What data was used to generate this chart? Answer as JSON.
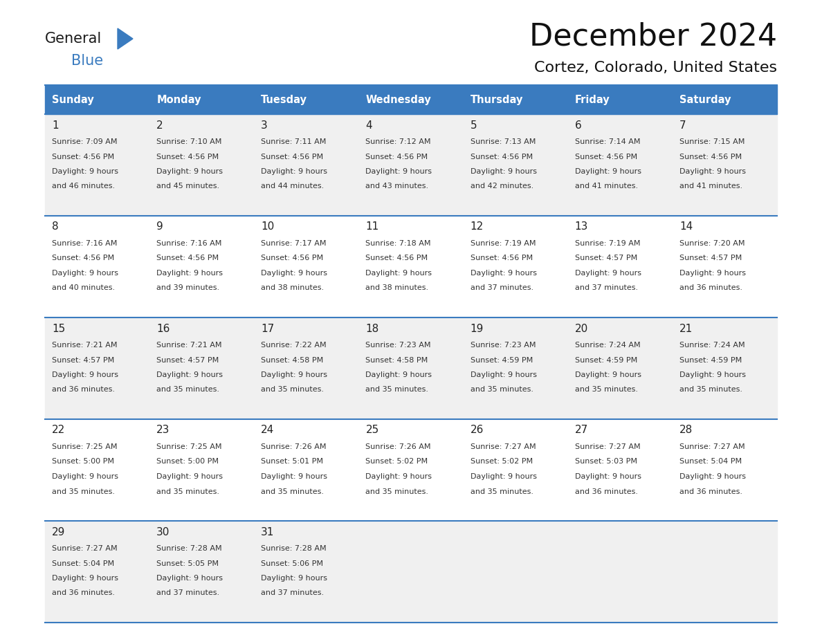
{
  "title": "December 2024",
  "subtitle": "Cortez, Colorado, United States",
  "days_of_week": [
    "Sunday",
    "Monday",
    "Tuesday",
    "Wednesday",
    "Thursday",
    "Friday",
    "Saturday"
  ],
  "header_bg": "#3a7bbf",
  "header_text": "#ffffff",
  "row_bg_light": "#f0f0f0",
  "row_bg_white": "#ffffff",
  "separator_color": "#3a7bbf",
  "day_num_color": "#222222",
  "cell_text_color": "#333333",
  "calendar_data": [
    [
      {
        "day": 1,
        "sunrise": "7:09 AM",
        "sunset": "4:56 PM",
        "daylight_hrs": 9,
        "daylight_min": 46
      },
      {
        "day": 2,
        "sunrise": "7:10 AM",
        "sunset": "4:56 PM",
        "daylight_hrs": 9,
        "daylight_min": 45
      },
      {
        "day": 3,
        "sunrise": "7:11 AM",
        "sunset": "4:56 PM",
        "daylight_hrs": 9,
        "daylight_min": 44
      },
      {
        "day": 4,
        "sunrise": "7:12 AM",
        "sunset": "4:56 PM",
        "daylight_hrs": 9,
        "daylight_min": 43
      },
      {
        "day": 5,
        "sunrise": "7:13 AM",
        "sunset": "4:56 PM",
        "daylight_hrs": 9,
        "daylight_min": 42
      },
      {
        "day": 6,
        "sunrise": "7:14 AM",
        "sunset": "4:56 PM",
        "daylight_hrs": 9,
        "daylight_min": 41
      },
      {
        "day": 7,
        "sunrise": "7:15 AM",
        "sunset": "4:56 PM",
        "daylight_hrs": 9,
        "daylight_min": 41
      }
    ],
    [
      {
        "day": 8,
        "sunrise": "7:16 AM",
        "sunset": "4:56 PM",
        "daylight_hrs": 9,
        "daylight_min": 40
      },
      {
        "day": 9,
        "sunrise": "7:16 AM",
        "sunset": "4:56 PM",
        "daylight_hrs": 9,
        "daylight_min": 39
      },
      {
        "day": 10,
        "sunrise": "7:17 AM",
        "sunset": "4:56 PM",
        "daylight_hrs": 9,
        "daylight_min": 38
      },
      {
        "day": 11,
        "sunrise": "7:18 AM",
        "sunset": "4:56 PM",
        "daylight_hrs": 9,
        "daylight_min": 38
      },
      {
        "day": 12,
        "sunrise": "7:19 AM",
        "sunset": "4:56 PM",
        "daylight_hrs": 9,
        "daylight_min": 37
      },
      {
        "day": 13,
        "sunrise": "7:19 AM",
        "sunset": "4:57 PM",
        "daylight_hrs": 9,
        "daylight_min": 37
      },
      {
        "day": 14,
        "sunrise": "7:20 AM",
        "sunset": "4:57 PM",
        "daylight_hrs": 9,
        "daylight_min": 36
      }
    ],
    [
      {
        "day": 15,
        "sunrise": "7:21 AM",
        "sunset": "4:57 PM",
        "daylight_hrs": 9,
        "daylight_min": 36
      },
      {
        "day": 16,
        "sunrise": "7:21 AM",
        "sunset": "4:57 PM",
        "daylight_hrs": 9,
        "daylight_min": 35
      },
      {
        "day": 17,
        "sunrise": "7:22 AM",
        "sunset": "4:58 PM",
        "daylight_hrs": 9,
        "daylight_min": 35
      },
      {
        "day": 18,
        "sunrise": "7:23 AM",
        "sunset": "4:58 PM",
        "daylight_hrs": 9,
        "daylight_min": 35
      },
      {
        "day": 19,
        "sunrise": "7:23 AM",
        "sunset": "4:59 PM",
        "daylight_hrs": 9,
        "daylight_min": 35
      },
      {
        "day": 20,
        "sunrise": "7:24 AM",
        "sunset": "4:59 PM",
        "daylight_hrs": 9,
        "daylight_min": 35
      },
      {
        "day": 21,
        "sunrise": "7:24 AM",
        "sunset": "4:59 PM",
        "daylight_hrs": 9,
        "daylight_min": 35
      }
    ],
    [
      {
        "day": 22,
        "sunrise": "7:25 AM",
        "sunset": "5:00 PM",
        "daylight_hrs": 9,
        "daylight_min": 35
      },
      {
        "day": 23,
        "sunrise": "7:25 AM",
        "sunset": "5:00 PM",
        "daylight_hrs": 9,
        "daylight_min": 35
      },
      {
        "day": 24,
        "sunrise": "7:26 AM",
        "sunset": "5:01 PM",
        "daylight_hrs": 9,
        "daylight_min": 35
      },
      {
        "day": 25,
        "sunrise": "7:26 AM",
        "sunset": "5:02 PM",
        "daylight_hrs": 9,
        "daylight_min": 35
      },
      {
        "day": 26,
        "sunrise": "7:27 AM",
        "sunset": "5:02 PM",
        "daylight_hrs": 9,
        "daylight_min": 35
      },
      {
        "day": 27,
        "sunrise": "7:27 AM",
        "sunset": "5:03 PM",
        "daylight_hrs": 9,
        "daylight_min": 36
      },
      {
        "day": 28,
        "sunrise": "7:27 AM",
        "sunset": "5:04 PM",
        "daylight_hrs": 9,
        "daylight_min": 36
      }
    ],
    [
      {
        "day": 29,
        "sunrise": "7:27 AM",
        "sunset": "5:04 PM",
        "daylight_hrs": 9,
        "daylight_min": 36
      },
      {
        "day": 30,
        "sunrise": "7:28 AM",
        "sunset": "5:05 PM",
        "daylight_hrs": 9,
        "daylight_min": 37
      },
      {
        "day": 31,
        "sunrise": "7:28 AM",
        "sunset": "5:06 PM",
        "daylight_hrs": 9,
        "daylight_min": 37
      },
      null,
      null,
      null,
      null
    ]
  ],
  "logo_general_color": "#1a1a1a",
  "logo_blue_color": "#3a7bbf",
  "logo_triangle_color": "#3a7bbf"
}
